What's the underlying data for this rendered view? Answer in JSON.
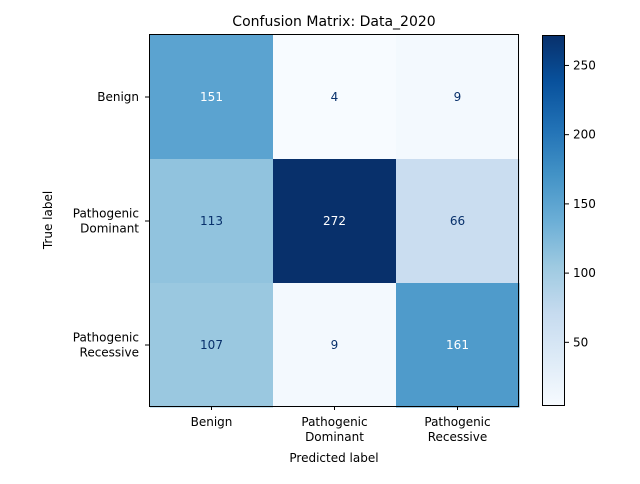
{
  "chart_data": {
    "type": "heatmap",
    "title": "Confusion Matrix: Data_2020",
    "xlabel": "Predicted label",
    "ylabel": "True label",
    "x_categories": [
      [
        "Benign"
      ],
      [
        "Pathogenic",
        "Dominant"
      ],
      [
        "Pathogenic",
        "Recessive"
      ]
    ],
    "y_categories": [
      [
        "Benign"
      ],
      [
        "Pathogenic",
        "Dominant"
      ],
      [
        "Pathogenic",
        "Recessive"
      ]
    ],
    "values": [
      [
        151,
        4,
        9
      ],
      [
        113,
        272,
        66
      ],
      [
        107,
        9,
        161
      ]
    ],
    "colormap": "Blues",
    "colorbar": {
      "range": [
        4,
        272
      ],
      "ticks": [
        50,
        100,
        150,
        200,
        250
      ]
    }
  }
}
